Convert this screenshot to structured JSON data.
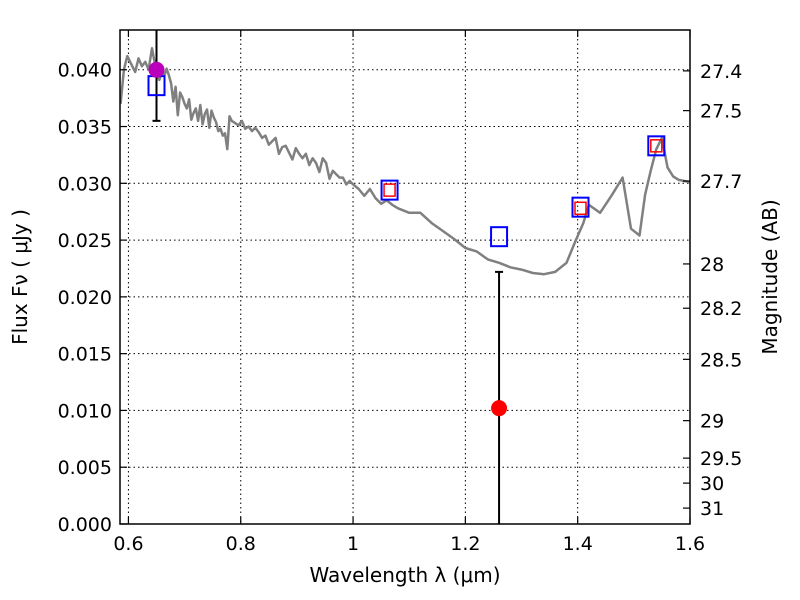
{
  "chart_data": {
    "type": "line",
    "xlabel": "Wavelength  λ (μm)",
    "ylabel": "Flux  Fν  ( μJy )",
    "y2label": "Magnitude (AB)",
    "xlim": [
      0.585,
      1.6
    ],
    "ylim": [
      0.0,
      0.0435
    ],
    "grid": true,
    "x_ticks": [
      {
        "value": 0.6,
        "label": "0.6"
      },
      {
        "value": 0.8,
        "label": "0.8"
      },
      {
        "value": 1.0,
        "label": "1"
      },
      {
        "value": 1.2,
        "label": "1.2"
      },
      {
        "value": 1.4,
        "label": "1.4"
      },
      {
        "value": 1.6,
        "label": "1.6"
      }
    ],
    "y_ticks": [
      {
        "value": 0.0,
        "label": "0.000"
      },
      {
        "value": 0.005,
        "label": "0.005"
      },
      {
        "value": 0.01,
        "label": "0.010"
      },
      {
        "value": 0.015,
        "label": "0.015"
      },
      {
        "value": 0.02,
        "label": "0.020"
      },
      {
        "value": 0.025,
        "label": "0.025"
      },
      {
        "value": 0.03,
        "label": "0.030"
      },
      {
        "value": 0.035,
        "label": "0.035"
      },
      {
        "value": 0.04,
        "label": "0.040"
      }
    ],
    "y2_ticks": [
      {
        "flux": 0.0399,
        "label": "27.4"
      },
      {
        "flux": 0.0364,
        "label": "27.5"
      },
      {
        "flux": 0.0302,
        "label": "27.7"
      },
      {
        "flux": 0.0229,
        "label": "28"
      },
      {
        "flux": 0.019,
        "label": "28.2"
      },
      {
        "flux": 0.0145,
        "label": "28.5"
      },
      {
        "flux": 0.0091,
        "label": "29"
      },
      {
        "flux": 0.0058,
        "label": "29.5"
      },
      {
        "flux": 0.0036,
        "label": "30"
      },
      {
        "flux": 0.0014,
        "label": "31"
      }
    ],
    "series": [
      {
        "name": "model spectrum",
        "kind": "line",
        "color": "#808080",
        "x": [
          0.586,
          0.592,
          0.598,
          0.605,
          0.612,
          0.618,
          0.624,
          0.63,
          0.636,
          0.642,
          0.646,
          0.65,
          0.655,
          0.66,
          0.664,
          0.668,
          0.672,
          0.676,
          0.68,
          0.684,
          0.688,
          0.692,
          0.696,
          0.7,
          0.704,
          0.708,
          0.712,
          0.716,
          0.72,
          0.724,
          0.728,
          0.732,
          0.736,
          0.74,
          0.744,
          0.748,
          0.752,
          0.756,
          0.76,
          0.764,
          0.768,
          0.772,
          0.776,
          0.78,
          0.784,
          0.79,
          0.796,
          0.802,
          0.808,
          0.814,
          0.82,
          0.826,
          0.832,
          0.838,
          0.844,
          0.85,
          0.856,
          0.862,
          0.868,
          0.874,
          0.88,
          0.886,
          0.892,
          0.898,
          0.904,
          0.91,
          0.916,
          0.922,
          0.928,
          0.934,
          0.94,
          0.946,
          0.952,
          0.958,
          0.964,
          0.97,
          0.976,
          0.982,
          0.988,
          0.994,
          1.0,
          1.01,
          1.02,
          1.03,
          1.04,
          1.05,
          1.06,
          1.07,
          1.08,
          1.1,
          1.12,
          1.14,
          1.16,
          1.18,
          1.2,
          1.22,
          1.24,
          1.26,
          1.28,
          1.3,
          1.32,
          1.34,
          1.36,
          1.38,
          1.395,
          1.41,
          1.42,
          1.44,
          1.46,
          1.48,
          1.495,
          1.51,
          1.52,
          1.53,
          1.54,
          1.55,
          1.56,
          1.57,
          1.58,
          1.6
        ],
        "y": [
          0.037,
          0.04,
          0.0412,
          0.0405,
          0.0398,
          0.041,
          0.0403,
          0.0407,
          0.04,
          0.0419,
          0.0408,
          0.0399,
          0.0391,
          0.0398,
          0.0395,
          0.0401,
          0.0395,
          0.0388,
          0.0372,
          0.0385,
          0.036,
          0.038,
          0.0376,
          0.037,
          0.0366,
          0.0374,
          0.0356,
          0.0362,
          0.0366,
          0.0355,
          0.0369,
          0.0352,
          0.0361,
          0.0365,
          0.0349,
          0.0364,
          0.0358,
          0.0354,
          0.0346,
          0.0348,
          0.0342,
          0.0344,
          0.033,
          0.0359,
          0.0355,
          0.0353,
          0.0351,
          0.0355,
          0.0348,
          0.035,
          0.0346,
          0.0349,
          0.0345,
          0.034,
          0.0342,
          0.0334,
          0.0337,
          0.034,
          0.0326,
          0.0332,
          0.0333,
          0.0327,
          0.0321,
          0.0331,
          0.0326,
          0.0322,
          0.0326,
          0.0316,
          0.0322,
          0.0318,
          0.031,
          0.0322,
          0.0318,
          0.0304,
          0.0311,
          0.0308,
          0.0305,
          0.0305,
          0.0299,
          0.0302,
          0.0299,
          0.0295,
          0.0289,
          0.0295,
          0.0287,
          0.0282,
          0.0285,
          0.0281,
          0.0278,
          0.0274,
          0.0274,
          0.0265,
          0.0258,
          0.0251,
          0.0243,
          0.024,
          0.0233,
          0.023,
          0.0226,
          0.0224,
          0.0221,
          0.022,
          0.0222,
          0.023,
          0.0248,
          0.0265,
          0.0281,
          0.0274,
          0.0289,
          0.0305,
          0.026,
          0.0254,
          0.029,
          0.0311,
          0.033,
          0.034,
          0.0314,
          0.0306,
          0.0303,
          0.0301
        ]
      },
      {
        "name": "blue squares",
        "kind": "square-marker",
        "color": "#0000ff",
        "x": [
          0.65,
          1.065,
          1.26,
          1.405,
          1.54
        ],
        "y": [
          0.0386,
          0.0294,
          0.0253,
          0.0279,
          0.0333
        ]
      },
      {
        "name": "red squares",
        "kind": "small-square-marker",
        "color": "#ff0000",
        "x": [
          1.065,
          1.405,
          1.54
        ],
        "y": [
          0.0294,
          0.0278,
          0.0333
        ]
      },
      {
        "name": "purple point",
        "kind": "circle-marker",
        "color": "#bb00bb",
        "x": [
          0.65
        ],
        "y": [
          0.04
        ],
        "yerr_low": [
          0.0355
        ],
        "yerr_high": [
          0.0435
        ]
      },
      {
        "name": "red point",
        "kind": "circle-marker",
        "color": "#ff0000",
        "x": [
          1.26
        ],
        "y": [
          0.0102
        ],
        "yerr_low": [
          0.0
        ],
        "yerr_high": [
          0.0222
        ]
      }
    ]
  }
}
